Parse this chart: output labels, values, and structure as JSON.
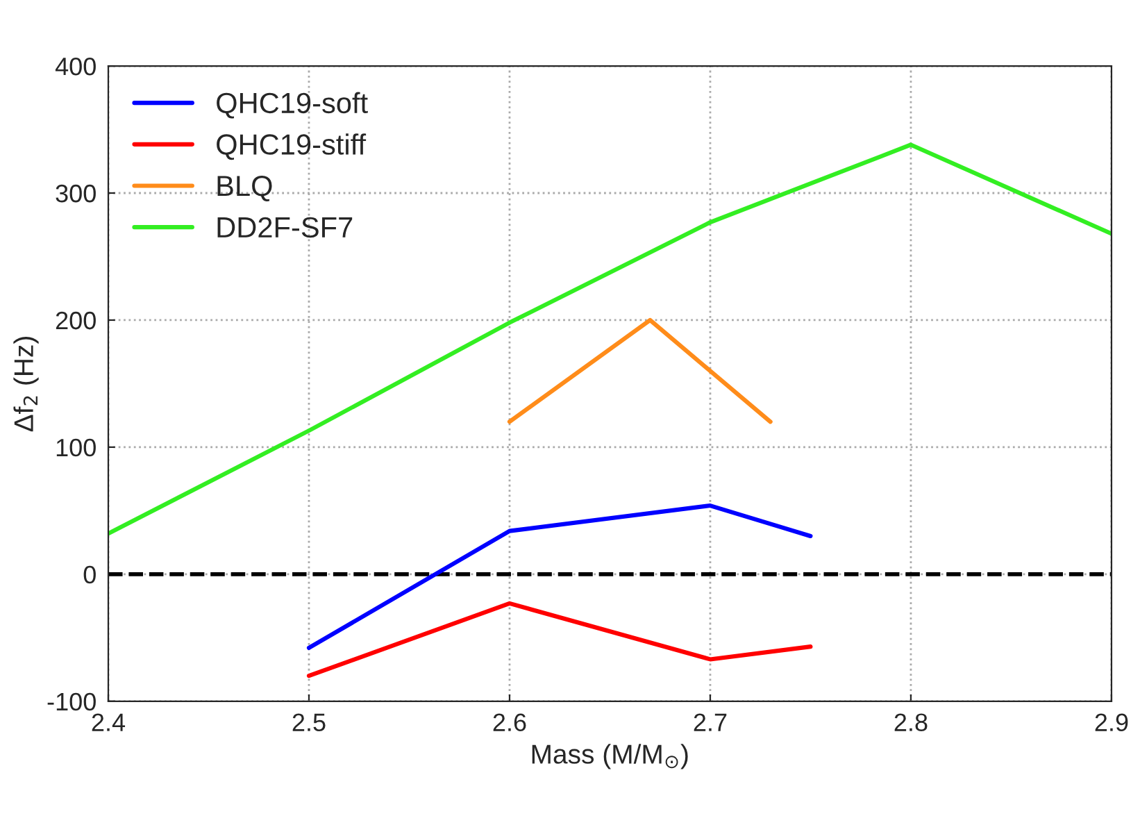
{
  "chart_data": {
    "type": "line",
    "xlabel": "Mass (M/M$_{⊙}$)",
    "ylabel": "Δf$_{2}$ (Hz)",
    "xlim": [
      2.4,
      2.9
    ],
    "xticks": [
      2.4,
      2.5,
      2.6,
      2.7,
      2.8,
      2.9
    ],
    "ylim": [
      -100,
      400
    ],
    "yticks": [
      -100,
      0,
      100,
      200,
      300,
      400
    ],
    "grid": true,
    "legend": "top left",
    "line_style": "solid",
    "marker": "none",
    "ref_lines": [
      {
        "axis": "y",
        "value": 0,
        "color": "#000000",
        "line_style": "dashed"
      }
    ],
    "series": [
      {
        "name": "QHC19-soft",
        "color": "#0000ff",
        "x": [
          2.5,
          2.6,
          2.7,
          2.75
        ],
        "values": [
          -58,
          34,
          54,
          30
        ]
      },
      {
        "name": "QHC19-stiff",
        "color": "#ff0000",
        "x": [
          2.5,
          2.6,
          2.7,
          2.75
        ],
        "values": [
          -80,
          -23,
          -67,
          -57
        ]
      },
      {
        "name": "BLQ",
        "color": "#ff8c1a",
        "x": [
          2.6,
          2.67,
          2.73
        ],
        "values": [
          120,
          200,
          120
        ]
      },
      {
        "name": "DD2F-SF7",
        "color": "#33ee22",
        "x": [
          2.4,
          2.5,
          2.6,
          2.7,
          2.8,
          2.9
        ],
        "values": [
          32,
          113,
          198,
          277,
          338,
          268
        ]
      }
    ]
  }
}
